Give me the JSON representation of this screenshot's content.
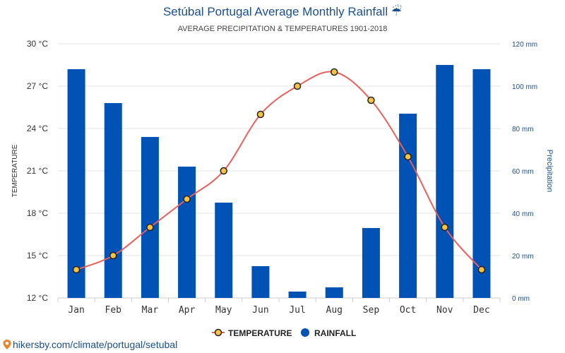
{
  "title": "Setúbal Portugal Average Monthly Rainfall ☔",
  "subtitle": "AVERAGE PRECIPITATION & TEMPERATURES 1901-2018",
  "watermark": "hikersby.com/climate/portugal/setubal",
  "colors": {
    "rain": "#0052b4",
    "temperature_line": "#e8605a",
    "temperature_marker": "#f5c242",
    "left_axis": "#333333",
    "right_axis": "#1a4f8e",
    "grid": "#e6e6e6"
  },
  "chart_data": {
    "type": "bar",
    "categories": [
      "Jan",
      "Feb",
      "Mar",
      "Apr",
      "May",
      "Jun",
      "Jul",
      "Aug",
      "Sep",
      "Oct",
      "Nov",
      "Dec"
    ],
    "series": [
      {
        "name": "TEMPERATURE",
        "type": "line",
        "axis": "left",
        "values": [
          14,
          15,
          17,
          19,
          21,
          25,
          27,
          28,
          26,
          22,
          17,
          14
        ]
      },
      {
        "name": "RAINFALL",
        "type": "bar",
        "axis": "right",
        "values": [
          108,
          92,
          76,
          62,
          45,
          15,
          3,
          5,
          33,
          87,
          110,
          108
        ]
      }
    ],
    "ylabel": "TEMPERATURE",
    "y2label": "Precipitation",
    "ylim": [
      12,
      30
    ],
    "y2lim": [
      0,
      120
    ],
    "yticks": [
      "12 °C",
      "15 °C",
      "18 °C",
      "21 °C",
      "24 °C",
      "27 °C",
      "30 °C"
    ],
    "y2ticks": [
      "0 mm",
      "20 mm",
      "40 mm",
      "60 mm",
      "80 mm",
      "100 mm",
      "120 mm"
    ],
    "legend": "bottom-center",
    "grid": true
  }
}
